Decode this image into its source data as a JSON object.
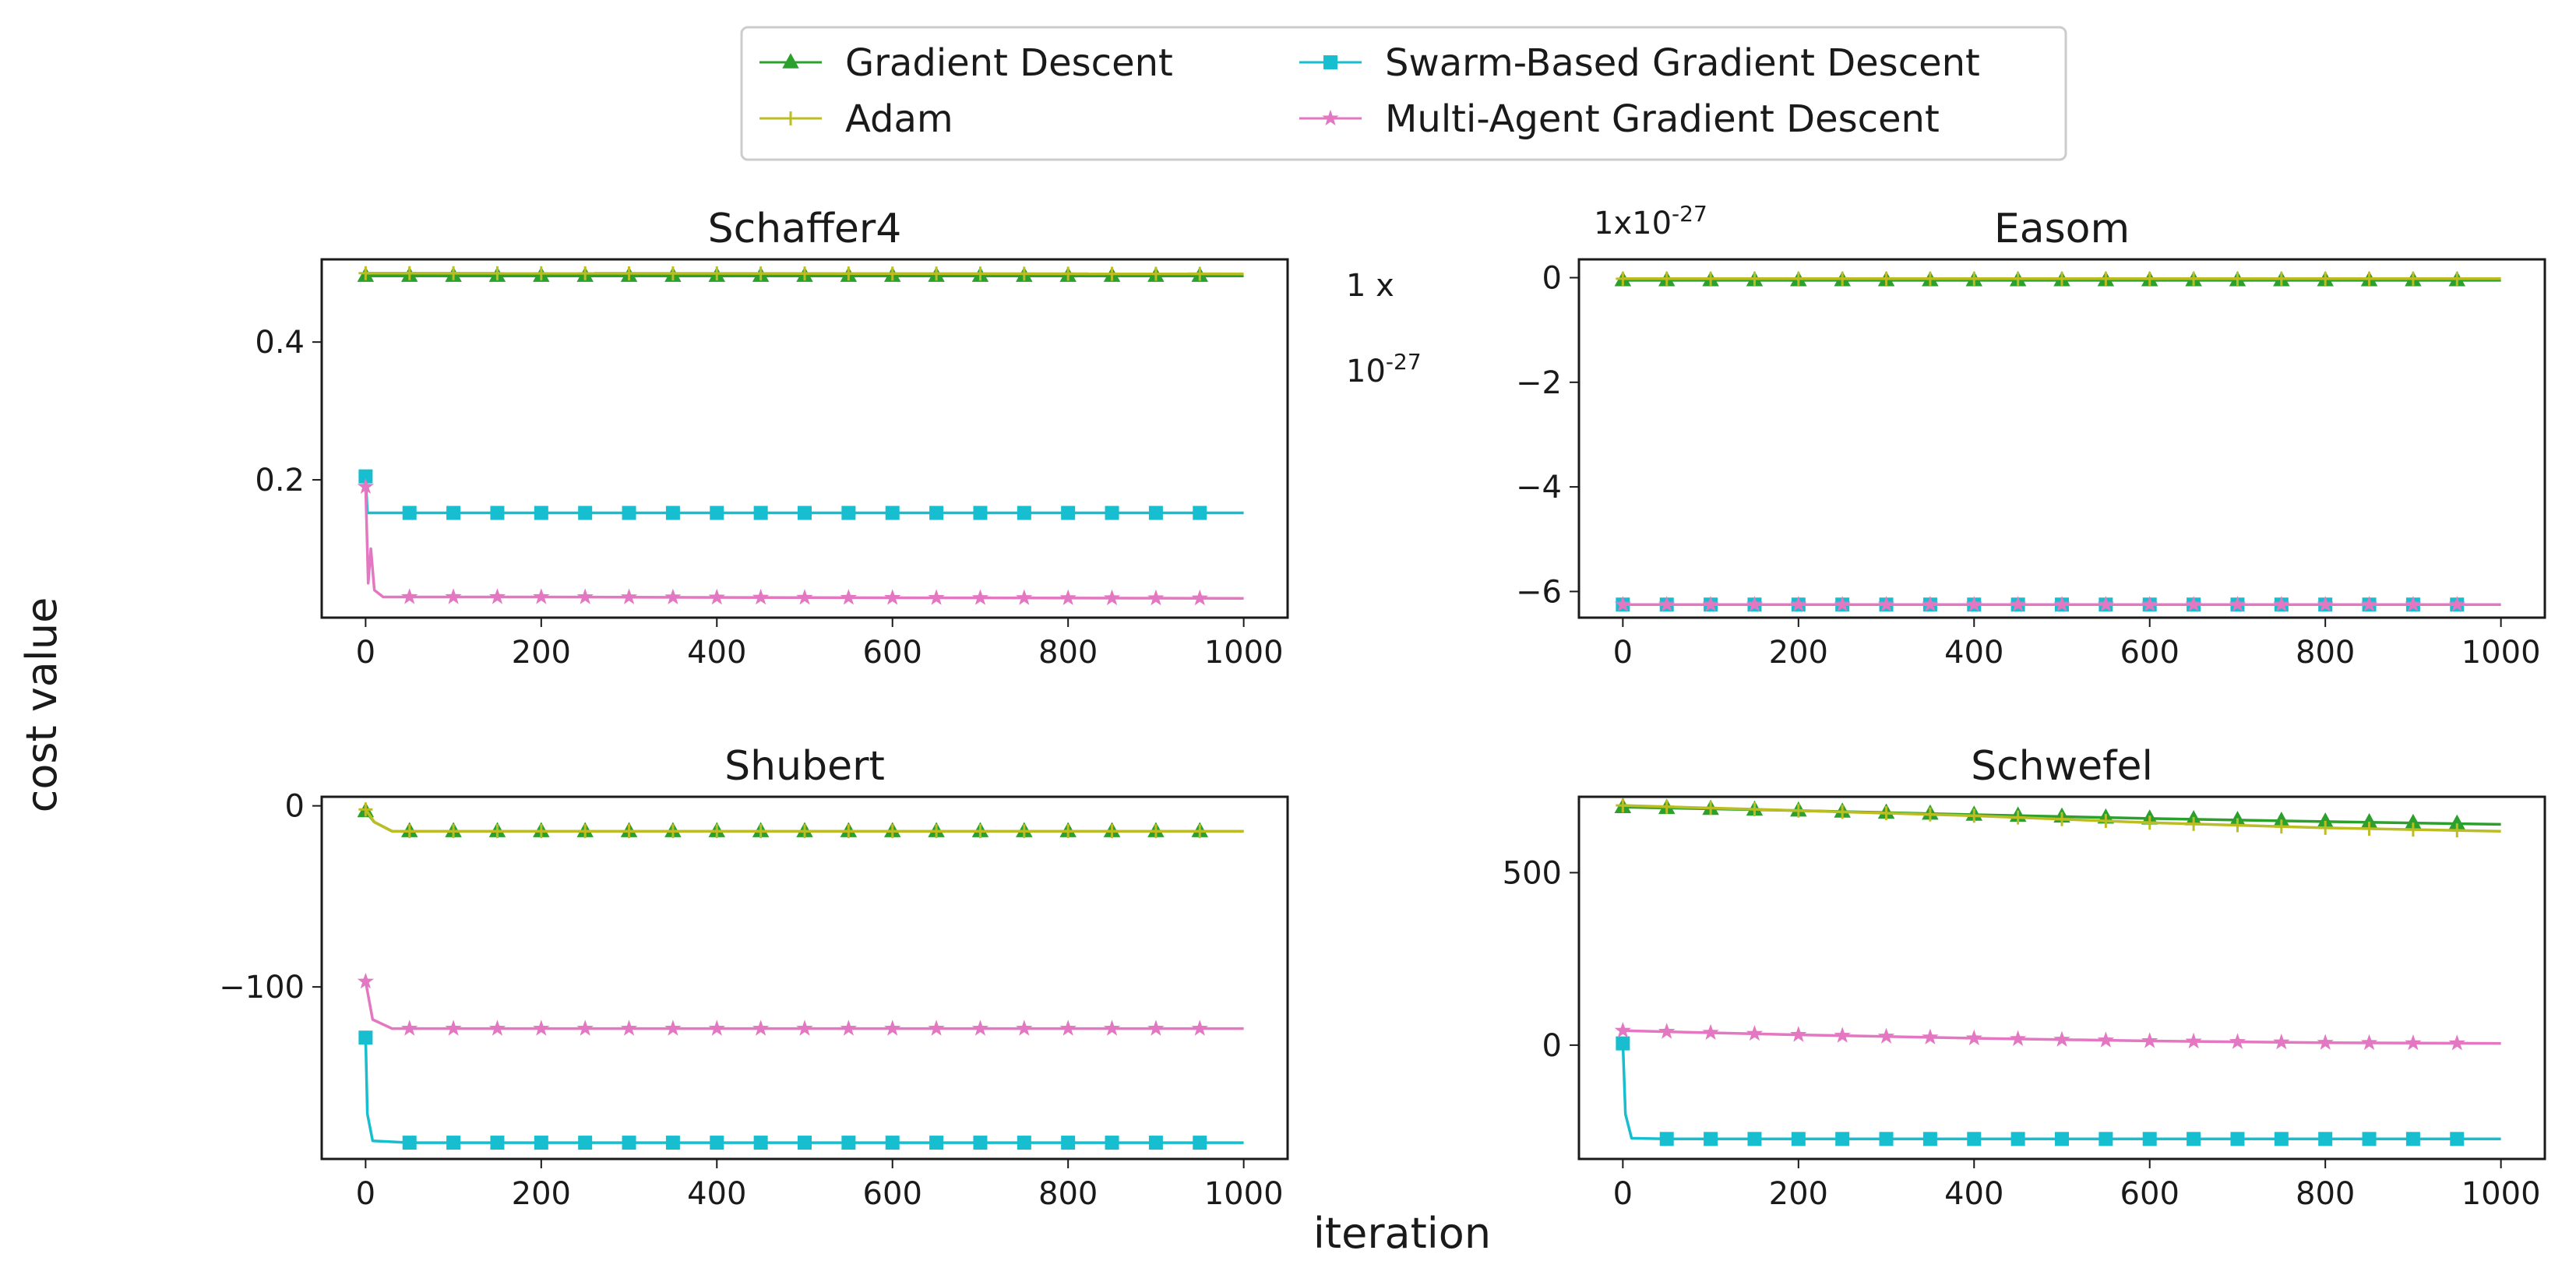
{
  "figure": {
    "ylabel": "cost value",
    "xlabel": "iteration",
    "offset_labels": {
      "a_main": "1 x",
      "a_exp_base": "10",
      "a_exp": "-27",
      "b_main": "1x10",
      "b_exp": "-27"
    }
  },
  "legend": {
    "location": "upper-center",
    "ncol": 2,
    "entries": [
      {
        "name": "Gradient Descent",
        "color": "#2ca02c",
        "marker": "triangle"
      },
      {
        "name": "Adam",
        "color": "#bcbd22",
        "marker": "plus"
      },
      {
        "name": "Swarm-Based Gradient Descent",
        "color": "#17becf",
        "marker": "square"
      },
      {
        "name": "Multi-Agent Gradient Descent",
        "color": "#e377c2",
        "marker": "star"
      }
    ]
  },
  "chart_data": [
    {
      "type": "line",
      "title": "Schaffer4",
      "xlim": [
        -50,
        1050
      ],
      "ylim": [
        0.0,
        0.52
      ],
      "xticks": [
        0,
        200,
        400,
        600,
        800,
        1000
      ],
      "yticks": [
        0.2,
        0.4
      ],
      "xtick_labels": [
        "0",
        "200",
        "400",
        "600",
        "800",
        "1000"
      ],
      "ytick_labels": [
        "0.2",
        "0.4"
      ],
      "series": [
        {
          "name": "Gradient Descent",
          "color": "#2ca02c",
          "marker": "triangle",
          "x": [
            0,
            1000
          ],
          "y": [
            0.496,
            0.496
          ]
        },
        {
          "name": "Adam",
          "color": "#bcbd22",
          "marker": "plus",
          "x": [
            0,
            1000
          ],
          "y": [
            0.5,
            0.499
          ]
        },
        {
          "name": "Swarm-Based Gradient Descent",
          "color": "#17becf",
          "marker": "square",
          "x": [
            0,
            2,
            50,
            1000
          ],
          "y": [
            0.205,
            0.152,
            0.152,
            0.152
          ]
        },
        {
          "name": "Multi-Agent Gradient Descent",
          "color": "#e377c2",
          "marker": "star",
          "x": [
            0,
            3,
            6,
            10,
            20,
            50,
            200,
            500,
            1000
          ],
          "y": [
            0.19,
            0.05,
            0.1,
            0.04,
            0.03,
            0.03,
            0.03,
            0.029,
            0.028
          ]
        }
      ]
    },
    {
      "type": "line",
      "title": "Easom",
      "xlim": [
        -50,
        1050
      ],
      "ylim": [
        -6.5,
        0.35
      ],
      "xticks": [
        0,
        200,
        400,
        600,
        800,
        1000
      ],
      "yticks": [
        0,
        -2,
        -4,
        -6
      ],
      "xtick_labels": [
        "0",
        "200",
        "400",
        "600",
        "800",
        "1000"
      ],
      "ytick_labels": [
        "0",
        "−2",
        "−4",
        "−6"
      ],
      "series": [
        {
          "name": "Gradient Descent",
          "color": "#2ca02c",
          "marker": "triangle",
          "x": [
            0,
            1000
          ],
          "y": [
            -0.05,
            -0.05
          ]
        },
        {
          "name": "Adam",
          "color": "#bcbd22",
          "marker": "plus",
          "x": [
            0,
            1000
          ],
          "y": [
            -0.02,
            -0.02
          ]
        },
        {
          "name": "Swarm-Based Gradient Descent",
          "color": "#17becf",
          "marker": "square",
          "x": [
            0,
            1000
          ],
          "y": [
            -6.25,
            -6.25
          ]
        },
        {
          "name": "Multi-Agent Gradient Descent",
          "color": "#e377c2",
          "marker": "star",
          "x": [
            0,
            1000
          ],
          "y": [
            -6.25,
            -6.25
          ]
        }
      ]
    },
    {
      "type": "line",
      "title": "Shubert",
      "xlim": [
        -50,
        1050
      ],
      "ylim": [
        -195,
        5
      ],
      "xticks": [
        0,
        200,
        400,
        600,
        800,
        1000
      ],
      "yticks": [
        0,
        -100
      ],
      "xtick_labels": [
        "0",
        "200",
        "400",
        "600",
        "800",
        "1000"
      ],
      "ytick_labels": [
        "0",
        "−100"
      ],
      "series": [
        {
          "name": "Gradient Descent",
          "color": "#2ca02c",
          "marker": "triangle",
          "x": [
            0,
            10,
            30,
            1000
          ],
          "y": [
            -3,
            -9,
            -14,
            -14
          ]
        },
        {
          "name": "Adam",
          "color": "#bcbd22",
          "marker": "plus",
          "x": [
            0,
            10,
            30,
            1000
          ],
          "y": [
            -2,
            -9,
            -14,
            -14
          ]
        },
        {
          "name": "Swarm-Based Gradient Descent",
          "color": "#17becf",
          "marker": "square",
          "x": [
            0,
            2,
            8,
            50,
            1000
          ],
          "y": [
            -128,
            -170,
            -185,
            -186,
            -186
          ]
        },
        {
          "name": "Multi-Agent Gradient Descent",
          "color": "#e377c2",
          "marker": "star",
          "x": [
            0,
            8,
            30,
            50,
            1000
          ],
          "y": [
            -97,
            -118,
            -123,
            -123,
            -123
          ]
        }
      ]
    },
    {
      "type": "line",
      "title": "Schwefel",
      "xlim": [
        -50,
        1050
      ],
      "ylim": [
        -330,
        720
      ],
      "xticks": [
        0,
        200,
        400,
        600,
        800,
        1000
      ],
      "yticks": [
        500,
        0
      ],
      "xtick_labels": [
        "0",
        "200",
        "400",
        "600",
        "800",
        "1000"
      ],
      "ytick_labels": [
        "500",
        "0"
      ],
      "series": [
        {
          "name": "Gradient Descent",
          "color": "#2ca02c",
          "marker": "triangle",
          "x": [
            0,
            200,
            400,
            600,
            800,
            1000
          ],
          "y": [
            690,
            680,
            668,
            657,
            648,
            640
          ]
        },
        {
          "name": "Adam",
          "color": "#bcbd22",
          "marker": "plus",
          "x": [
            0,
            200,
            400,
            600,
            800,
            1000
          ],
          "y": [
            695,
            680,
            665,
            645,
            630,
            620
          ]
        },
        {
          "name": "Swarm-Based Gradient Descent",
          "color": "#17becf",
          "marker": "square",
          "x": [
            0,
            3,
            10,
            50,
            1000
          ],
          "y": [
            5,
            -200,
            -270,
            -272,
            -272
          ]
        },
        {
          "name": "Multi-Agent Gradient Descent",
          "color": "#e377c2",
          "marker": "star",
          "x": [
            0,
            200,
            400,
            600,
            800,
            1000
          ],
          "y": [
            42,
            30,
            20,
            12,
            7,
            5
          ]
        }
      ]
    }
  ]
}
